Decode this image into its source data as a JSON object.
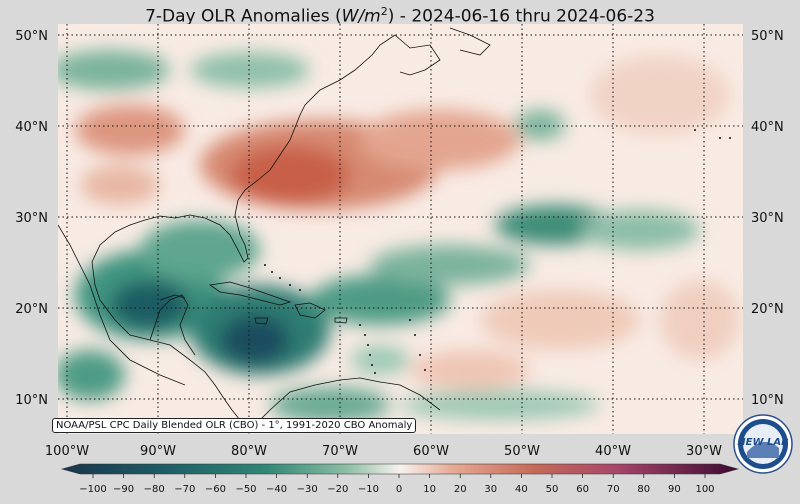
{
  "title": {
    "prefix": "7-Day OLR Anomalies (",
    "unit_base": "W/m",
    "unit_exp": "2",
    "suffix": ") - 2024-06-16 thru 2024-06-23"
  },
  "map": {
    "lat_labels": [
      "50°N",
      "40°N",
      "30°N",
      "20°N",
      "10°N"
    ],
    "lon_labels": [
      "100°W",
      "90°W",
      "80°W",
      "70°W",
      "60°W",
      "50°W",
      "40°W",
      "30°W"
    ],
    "credit": "NOAA/PSL CPC Daily Blended OLR (CBO) - 1°, 1991-2020 CBO Anomaly",
    "logo_text": "NEW LAB"
  },
  "colorbar": {
    "ticks": [
      "−100",
      "−90",
      "−80",
      "−70",
      "−60",
      "−50",
      "−40",
      "−30",
      "−20",
      "−10",
      "0",
      "10",
      "20",
      "30",
      "40",
      "50",
      "60",
      "70",
      "80",
      "90",
      "100"
    ],
    "low_color": "#0f2a3f",
    "high_color": "#3a0a2a"
  },
  "colors": {
    "positive": "#c0604a",
    "negative": "#2e7f6e",
    "strong_negative": "#1a4f5c",
    "neutral": "#f7ece6"
  }
}
